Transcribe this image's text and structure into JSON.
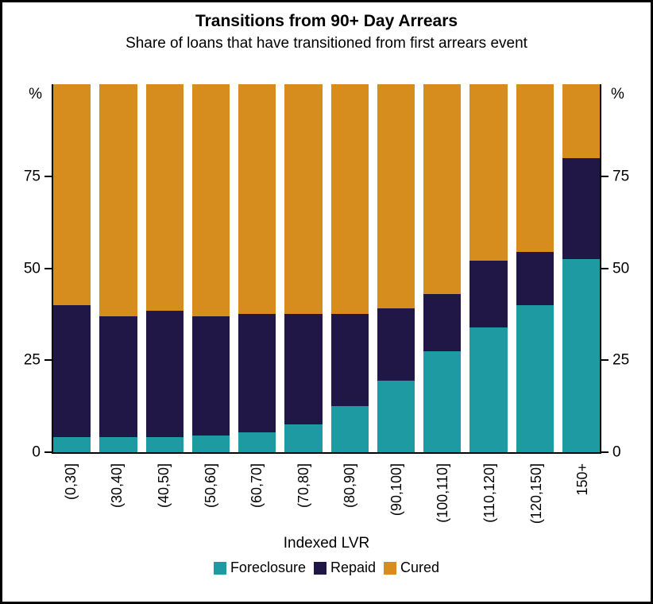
{
  "title": "Transitions from 90+ Day Arrears",
  "subtitle": "Share of loans that have transitioned from first arrears event",
  "y_unit": "%",
  "xlabel": "Indexed LVR",
  "chart_data": {
    "type": "bar",
    "stacked": true,
    "title": "Transitions from 90+ Day Arrears",
    "subtitle": "Share of loans that have transitioned from first arrears event",
    "xlabel": "Indexed LVR",
    "ylabel": "%",
    "ylim": [
      0,
      100
    ],
    "yticks": [
      0,
      25,
      50,
      75
    ],
    "grid": false,
    "legend_position": "bottom",
    "categories": [
      "(0,30]",
      "(30,40]",
      "(40,50]",
      "(50,60]",
      "(60,70]",
      "(70,80]",
      "(80,90]",
      "(90,100]",
      "(100,110]",
      "(110,120]",
      "(120,150]",
      "150+"
    ],
    "series": [
      {
        "name": "Foreclosure",
        "color": "#1d9aa2",
        "values": [
          4,
          4,
          4,
          4.5,
          5.5,
          7.5,
          12.5,
          19.5,
          27.5,
          34,
          40,
          52.5
        ]
      },
      {
        "name": "Repaid",
        "color": "#201747",
        "values": [
          36,
          33,
          34.5,
          32.5,
          32,
          30,
          25,
          19.5,
          15.5,
          18,
          14.5,
          27.5
        ]
      },
      {
        "name": "Cured",
        "color": "#d78c1e",
        "values": [
          60,
          63,
          61.5,
          63,
          62.5,
          62.5,
          62.5,
          61,
          57,
          48,
          45.5,
          20
        ]
      }
    ]
  }
}
